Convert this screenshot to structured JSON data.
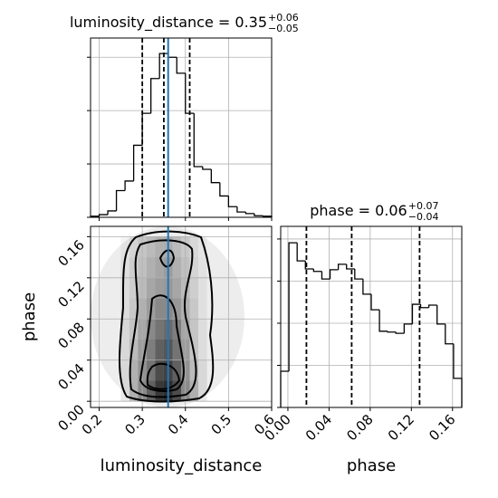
{
  "chart_data": [
    {
      "type": "histogram",
      "title": "luminosity_distance = 0.35",
      "title_sup": "+0.06",
      "title_sub": "−0.05",
      "bins": [
        0.18,
        0.2,
        0.22,
        0.24,
        0.26,
        0.28,
        0.3,
        0.32,
        0.34,
        0.36,
        0.38,
        0.4,
        0.42,
        0.44,
        0.46,
        0.48,
        0.5,
        0.52,
        0.54,
        0.56,
        0.58,
        0.6
      ],
      "values": [
        0.02,
        0.05,
        0.12,
        0.5,
        0.68,
        1.35,
        1.95,
        2.6,
        3.07,
        3.0,
        2.7,
        1.95,
        0.95,
        0.9,
        0.65,
        0.4,
        0.2,
        0.1,
        0.07,
        0.03,
        0.02
      ],
      "color": "#000000",
      "quantiles": [
        0.3,
        0.35,
        0.41
      ],
      "truth": 0.36,
      "truth_color": "#1f77b4",
      "xlim": [
        0.18,
        0.6
      ],
      "xticks": [
        0.2,
        0.3,
        0.4,
        0.5,
        0.6
      ],
      "ylim": [
        0,
        3.36
      ],
      "yticks": [
        0,
        1,
        2,
        3
      ],
      "grid": true
    },
    {
      "type": "heatmap",
      "x_label": "luminosity_distance",
      "y_label": "phase",
      "xbins": [
        0.25,
        0.27,
        0.29,
        0.31,
        0.33,
        0.35,
        0.37,
        0.39,
        0.41,
        0.43,
        0.45
      ],
      "ybins": [
        0,
        0.02,
        0.04,
        0.06,
        0.08,
        0.1,
        0.12,
        0.14,
        0.16
      ],
      "values": [
        [
          0.1,
          0.3,
          0.5,
          0.7,
          0.9,
          0.95,
          0.8,
          0.5,
          0.3,
          0.1
        ],
        [
          0.1,
          0.3,
          0.45,
          0.6,
          0.8,
          0.85,
          0.7,
          0.45,
          0.25,
          0.1
        ],
        [
          0.1,
          0.25,
          0.4,
          0.55,
          0.7,
          0.75,
          0.6,
          0.4,
          0.2,
          0.08
        ],
        [
          0.1,
          0.2,
          0.35,
          0.5,
          0.6,
          0.65,
          0.55,
          0.35,
          0.2,
          0.08
        ],
        [
          0.08,
          0.18,
          0.3,
          0.4,
          0.5,
          0.5,
          0.42,
          0.3,
          0.18,
          0.06
        ],
        [
          0.08,
          0.15,
          0.25,
          0.35,
          0.4,
          0.42,
          0.35,
          0.25,
          0.15,
          0.06
        ],
        [
          0.06,
          0.15,
          0.22,
          0.3,
          0.35,
          0.4,
          0.3,
          0.22,
          0.12,
          0.05
        ],
        [
          0.05,
          0.12,
          0.2,
          0.25,
          0.3,
          0.32,
          0.25,
          0.18,
          0.1,
          0.04
        ]
      ],
      "truth": 0.36,
      "truth_color": "#1f77b4",
      "xlim": [
        0.18,
        0.6
      ],
      "xticks": [
        0.2,
        0.3,
        0.4,
        0.5,
        0.6
      ],
      "ylim": [
        -0.006,
        0.17
      ],
      "yticks": [
        {
          "value": 0,
          "label": "0.00"
        },
        0.04,
        0.08,
        0.12,
        0.16
      ],
      "grid": true
    },
    {
      "type": "histogram",
      "title": "phase = 0.06",
      "title_sup": "+0.07",
      "title_sub": "−0.04",
      "x_label": "phase",
      "bins": [
        -0.007,
        0.001,
        0.009,
        0.017,
        0.025,
        0.033,
        0.041,
        0.049,
        0.057,
        0.065,
        0.073,
        0.081,
        0.089,
        0.097,
        0.105,
        0.113,
        0.121,
        0.129,
        0.137,
        0.145,
        0.153,
        0.161,
        0.169
      ],
      "values": [
        0.86,
        3.91,
        3.48,
        3.29,
        3.23,
        3.05,
        3.27,
        3.4,
        3.29,
        3.05,
        2.69,
        2.32,
        1.81,
        1.79,
        1.76,
        1.98,
        2.45,
        2.37,
        2.43,
        1.98,
        1.51,
        0.69
      ],
      "color": "#000000",
      "quantiles": [
        0.018,
        0.062,
        0.128
      ],
      "xlim": [
        -0.007,
        0.169
      ],
      "xticks": [
        {
          "value": 0,
          "label": "0.00"
        },
        0.04,
        0.08,
        0.12,
        0.16
      ],
      "ylim": [
        0,
        4.3
      ],
      "yticks": [
        0,
        1,
        2,
        3,
        4
      ],
      "grid": true
    }
  ]
}
